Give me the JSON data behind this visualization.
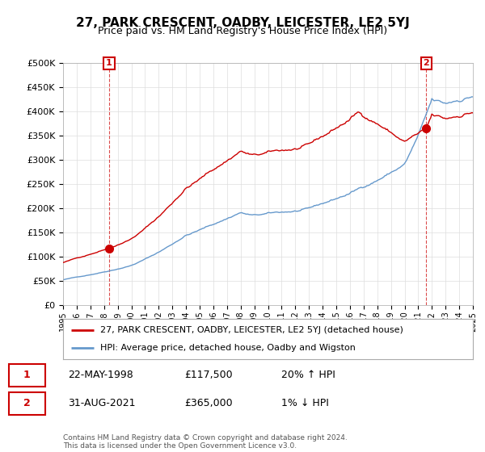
{
  "title": "27, PARK CRESCENT, OADBY, LEICESTER, LE2 5YJ",
  "subtitle": "Price paid vs. HM Land Registry's House Price Index (HPI)",
  "ylim": [
    0,
    500000
  ],
  "yticks": [
    0,
    50000,
    100000,
    150000,
    200000,
    250000,
    300000,
    350000,
    400000,
    450000,
    500000
  ],
  "sale1_date": "22-MAY-1998",
  "sale1_price": 117500,
  "sale1_hpi_pct": "20%",
  "sale1_hpi_dir": "↑",
  "sale2_date": "31-AUG-2021",
  "sale2_price": 365000,
  "sale2_hpi_pct": "1%",
  "sale2_hpi_dir": "↓",
  "legend_label1": "27, PARK CRESCENT, OADBY, LEICESTER, LE2 5YJ (detached house)",
  "legend_label2": "HPI: Average price, detached house, Oadby and Wigston",
  "footer": "Contains HM Land Registry data © Crown copyright and database right 2024.\nThis data is licensed under the Open Government Licence v3.0.",
  "sale_color": "#cc0000",
  "hpi_color": "#6699cc",
  "background_color": "#ffffff",
  "grid_color": "#dddddd",
  "annotation_box_color": "#cc0000"
}
